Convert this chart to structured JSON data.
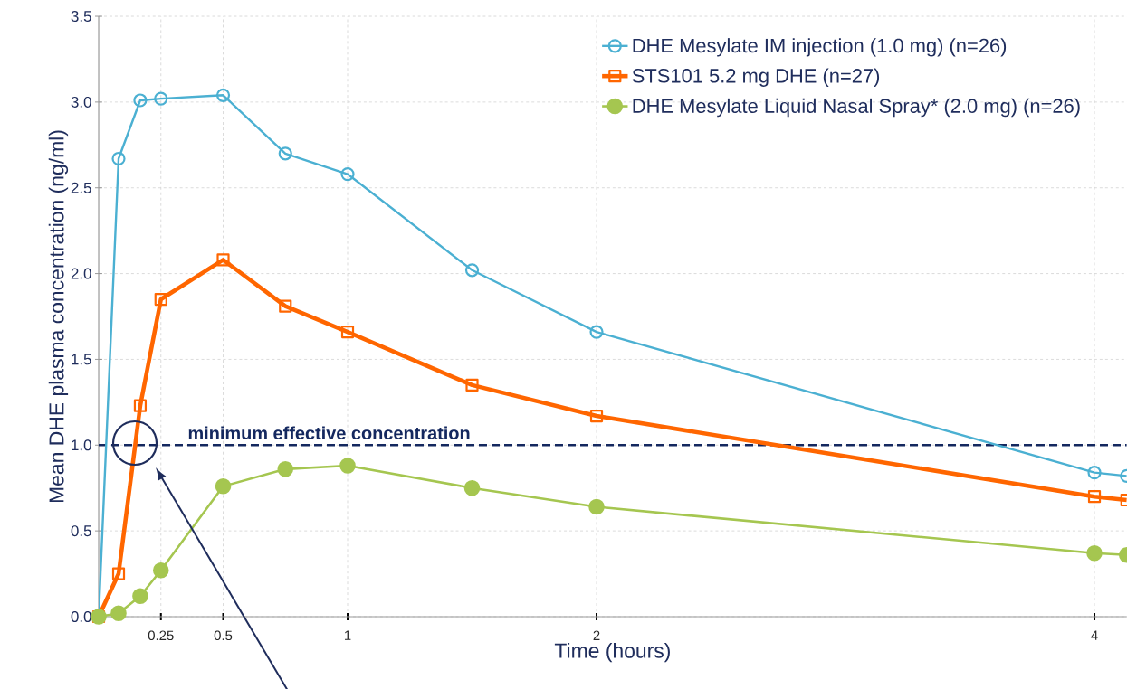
{
  "chart_data": {
    "type": "line",
    "xlabel": "Time (hours)",
    "ylabel": "Mean DHE plasma concentration (ng/ml)",
    "xlim": [
      0,
      4.13
    ],
    "ylim": [
      0,
      3.5
    ],
    "xticks": [
      0.25,
      0.5,
      1,
      2,
      4
    ],
    "yticks": [
      {
        "value": 0,
        "label": "0.0"
      },
      {
        "value": 0.5,
        "label": "0.5"
      },
      {
        "value": 1,
        "label": "1.0"
      },
      {
        "value": 1.5,
        "label": "1.5"
      },
      {
        "value": 2,
        "label": "2.0"
      },
      {
        "value": 2.5,
        "label": "2.5"
      },
      {
        "value": 3,
        "label": "3.0"
      },
      {
        "value": 3.5,
        "label": "3.5"
      }
    ],
    "grid": true,
    "legend": "top right",
    "line_style": "solid",
    "x": [
      0,
      0.08,
      0.167,
      0.25,
      0.5,
      0.75,
      1,
      1.5,
      2,
      4,
      4.13
    ],
    "series": [
      {
        "name": "DHE Mesylate IM injection (1.0 mg) (n=26)",
        "color": "#4bb0d2",
        "marker": "circle",
        "values": [
          0,
          2.67,
          3.01,
          3.02,
          3.04,
          2.7,
          2.58,
          2.02,
          1.66,
          0.84,
          0.82
        ]
      },
      {
        "name": "STS101 5.2 mg DHE (n=27)",
        "color": "#ff6600",
        "marker": "square",
        "values": [
          0,
          0.25,
          1.23,
          1.85,
          2.08,
          1.81,
          1.66,
          1.35,
          1.17,
          0.7,
          0.68
        ]
      },
      {
        "name": "DHE Mesylate Liquid Nasal Spray* (2.0 mg) (n=26)",
        "color": "#a5c650",
        "marker": "circle",
        "values": [
          0,
          0.02,
          0.12,
          0.27,
          0.76,
          0.86,
          0.88,
          0.75,
          0.64,
          0.37,
          0.36
        ]
      }
    ],
    "ref_lines": [
      {
        "axis": "y",
        "value": 1,
        "label": "minimum effective concentration",
        "color": "#14285f",
        "line_style": "dashed"
      }
    ]
  }
}
